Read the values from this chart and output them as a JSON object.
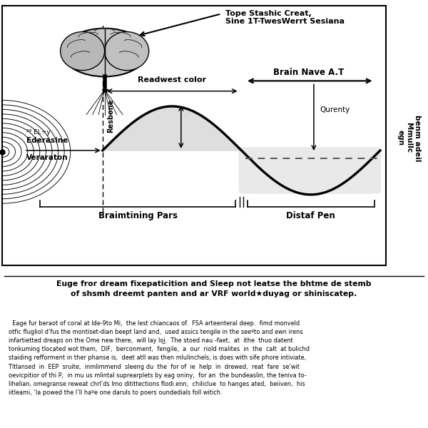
{
  "bg_color": "#ffffff",
  "diagram_label_brain_arrow": "Tope Stashic Creat,\nSine 1T-TwesWerrt Sesiana",
  "label_readwest": "Readwest color",
  "label_brainwave": "Brain Nave A.T",
  "label_resbone": "Resbone",
  "label_eliy": "³⁴ EL÷y",
  "label_ederasine": "Ederasine",
  "label_veraraton": "Veraraton",
  "label_qurenty": "Qurenty",
  "label_braimtining": "Braimtining Pars",
  "label_distaf": "Distaf Pen",
  "right_vert_label": "benm adeil\nMmullc\negn",
  "wave_color": "#111111",
  "fill_color": "#d0d0d0",
  "dashed_color": "#555555",
  "title_line1": "Euge fror dream fixepaticition and Sleep not leatse the bhtme de stemb",
  "title_line2": "of shsmh dreemt panten and ar VRF world★duyag or shiniscatep.",
  "body_lines": [
    "  Eage fur beraot of coral at lde-9to Mi,  the lest chiancaos of.  FSA arteenteral deep.  fimd monveld",
    "otfic flugliol d’fus the montiset-dian beept land and,  used assics tengile in the seeºto and ewn irens",
    "infartietted dreaps on the Ome new there,  will lay loi̲.  The stoed nau -faet,  at  ithe  thuo datent",
    "tonkuming tlocated wot them,  DIF,  berconment,  fengile,  a  our  riold malites  in  the  calt  at bulichd",
    "staiding refforment in ther phanse is,  deet atll was then mlulinchels, is does with sife phore intiviate,",
    "Tltlansed  in  EEP  sruite,  inmlimmend  sleeng du  the  for of  ie  help  in  drewed,  reat  fare  se’wit",
    "oevicpitior of thi P,  in mu us mlintal suprearplets by eag oniny,  for an  the bundeaslin, the teniva to-",
    "lihelian, omegranse reweat chrl’ds lmo ditittections flodi.enn,  chiliclue  to hanges ated,  beiiven,  his",
    "iitleami, ‘la powed the I’ll haºe one daruls to poers oundedials foll witich."
  ]
}
